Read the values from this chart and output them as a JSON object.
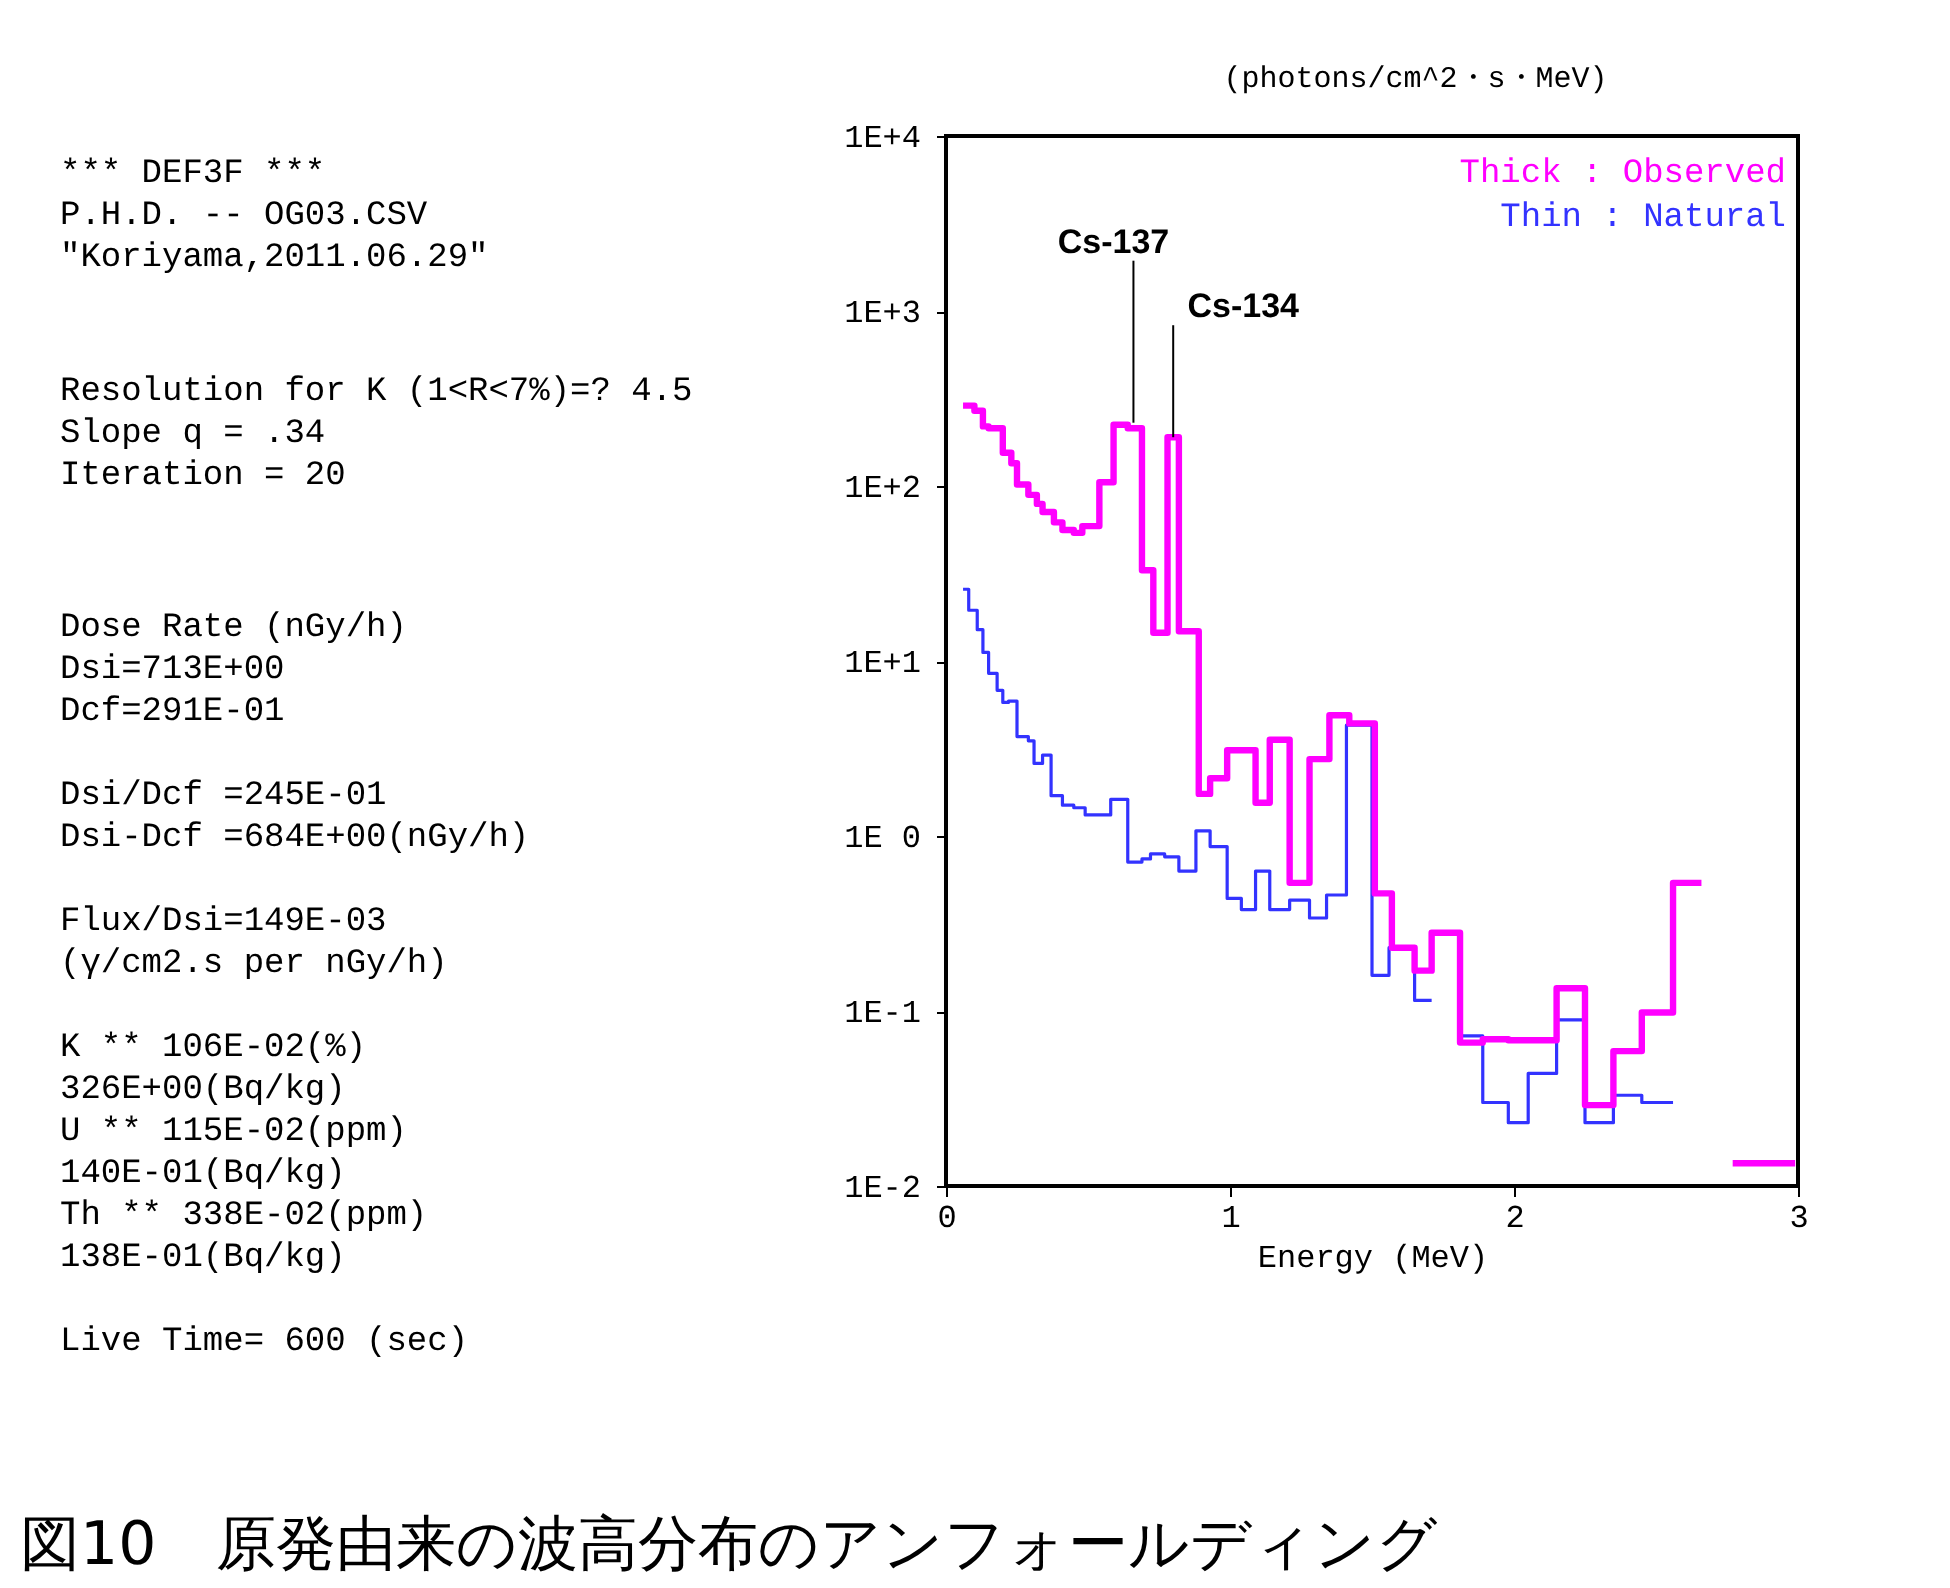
{
  "chart_data": [
    {
      "type": "other",
      "annotations": [
        "*** DEF3F ***",
        "P.H.D. -- OG03.CSV",
        "\"Koriyama,2011.06.29\"",
        "Resolution for K (1<R<7%)=? 4.5",
        "Slope q = .34",
        "Iteration = 20",
        "Dose Rate (nGy/h)",
        "Dsi=713E+00",
        "Dcf=291E-01",
        "Dsi/Dcf =245E-01",
        "Dsi-Dcf =684E+00(nGy/h)",
        "Flux/Dsi=149E-03",
        "(γ/cm2.s per nGy/h)",
        "K ** 106E-02(%)",
        "326E+00(Bq/kg)",
        "U ** 115E-02(ppm)",
        "140E-01(Bq/kg)",
        "Th ** 338E-02(ppm)",
        "138E-01(Bq/kg)",
        "Live Time= 600 (sec)"
      ]
    },
    {
      "type": "step",
      "title": "図10　原発由来の波高分布のアンフォールディング",
      "xlabel": "Energy (MeV)",
      "ylabel": "(photons/cm^2・s・MeV)",
      "log": "y",
      "legend": "top right",
      "xlim": [
        0,
        3
      ],
      "xticks": [
        0,
        1,
        2,
        3
      ],
      "ylim": [
        0.01,
        10000
      ],
      "yticks": [
        {
          "value": 10000,
          "label": "1E+4"
        },
        {
          "value": 1000,
          "label": "1E+3"
        },
        {
          "value": 100,
          "label": "1E+2"
        },
        {
          "value": 10,
          "label": "1E+1"
        },
        {
          "value": 1,
          "label": "1E 0"
        },
        {
          "value": 0.1,
          "label": "1E-1"
        },
        {
          "value": 0.01,
          "label": "1E-2"
        }
      ],
      "series": [
        {
          "name": "Thick : Observed",
          "color": "#ff00ff",
          "x": [
            0.06,
            0.1,
            0.13,
            0.15,
            0.2,
            0.23,
            0.25,
            0.29,
            0.32,
            0.34,
            0.38,
            0.41,
            0.45,
            0.48,
            0.54,
            0.59,
            0.64,
            0.69,
            0.73,
            0.78,
            0.82,
            0.89,
            0.93,
            0.99,
            1.09,
            1.14,
            1.21,
            1.28,
            1.35,
            1.42,
            1.51,
            1.57,
            1.65,
            1.71,
            1.81,
            1.89,
            1.98,
            2.15,
            2.25,
            2.35,
            2.45,
            2.56,
            2.66,
            2.77,
            2.99
          ],
          "values": [
            288,
            269,
            219,
            214,
            155,
            135,
            102,
            89,
            79,
            71,
            62,
            56,
            54,
            59,
            105,
            224,
            214,
            33,
            14.5,
            190,
            14.8,
            1.74,
            2.14,
            3.09,
            1.55,
            3.55,
            0.54,
            2.75,
            4.9,
            4.4,
            0.47,
            0.23,
            0.17,
            0.28,
            0.066,
            0.069,
            0.068,
            0.135,
            0.029,
            0.059,
            0.098,
            0.54,
            null,
            0.0135,
            0.0135
          ]
        },
        {
          "name": "Thin : Natural",
          "color": "#3333ff",
          "x": [
            0.06,
            0.08,
            0.11,
            0.13,
            0.15,
            0.18,
            0.2,
            0.22,
            0.25,
            0.29,
            0.31,
            0.34,
            0.37,
            0.41,
            0.45,
            0.49,
            0.58,
            0.64,
            0.69,
            0.72,
            0.77,
            0.82,
            0.88,
            0.93,
            0.99,
            1.04,
            1.09,
            1.14,
            1.21,
            1.28,
            1.34,
            1.41,
            1.5,
            1.56,
            1.65,
            1.71,
            1.81,
            1.89,
            1.98,
            2.05,
            2.15,
            2.25,
            2.35,
            2.45,
            2.56
          ],
          "values": [
            25.7,
            19.5,
            15.1,
            11.2,
            8.5,
            6.8,
            5.8,
            5.9,
            3.7,
            3.5,
            2.6,
            2.9,
            1.7,
            1.5,
            1.45,
            1.32,
            1.62,
            0.71,
            0.74,
            0.79,
            0.76,
            0.63,
            1.07,
            0.87,
            0.44,
            0.38,
            0.63,
            0.38,
            0.43,
            0.34,
            0.46,
            4.3,
            0.16,
            0.23,
            0.115,
            null,
            0.072,
            0.03,
            0.023,
            0.044,
            0.089,
            0.023,
            0.033,
            0.03,
            0.03
          ]
        }
      ],
      "annotations": [
        {
          "text": "Cs-137",
          "x": 0.66,
          "y": 230
        },
        {
          "text": "Cs-134",
          "x": 0.8,
          "y": 190
        }
      ]
    }
  ]
}
